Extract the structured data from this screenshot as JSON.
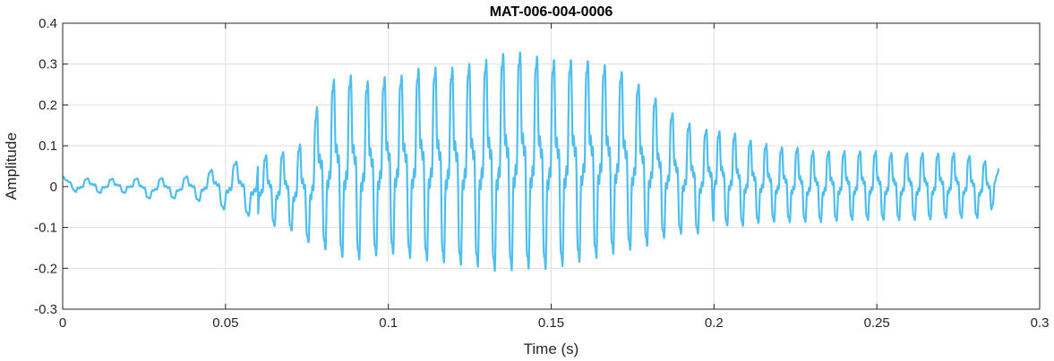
{
  "chart_data": {
    "type": "line",
    "title": "MAT-006-004-0006",
    "xlabel": "Time (s)",
    "ylabel": "Amplitude",
    "xlim": [
      0,
      0.3
    ],
    "ylim": [
      -0.3,
      0.4
    ],
    "grid": true,
    "x_ticks": [
      0,
      0.05,
      0.1,
      0.15,
      0.2,
      0.25,
      0.3
    ],
    "x_tick_labels": [
      "0",
      "0.05",
      "0.1",
      "0.15",
      "0.2",
      "0.25",
      "0.3"
    ],
    "y_ticks": [
      -0.3,
      -0.2,
      -0.1,
      0,
      0.1,
      0.2,
      0.3,
      0.4
    ],
    "y_tick_labels": [
      "-0.3",
      "-0.2",
      "-0.1",
      "0",
      "0.1",
      "0.2",
      "0.3",
      "0.4"
    ],
    "series": [
      {
        "color": "#4DBEEE",
        "x": [
          0,
          0.005,
          0.01,
          0.015,
          0.02,
          0.025,
          0.03,
          0.035,
          0.04,
          0.045,
          0.05,
          0.055,
          0.06,
          0.065,
          0.07,
          0.075,
          0.08,
          0.085,
          0.09,
          0.095,
          0.1,
          0.105,
          0.11,
          0.115,
          0.12,
          0.125,
          0.13,
          0.135,
          0.14,
          0.145,
          0.15,
          0.155,
          0.16,
          0.165,
          0.17,
          0.175,
          0.18,
          0.185,
          0.19,
          0.195,
          0.2,
          0.205,
          0.21,
          0.215,
          0.22,
          0.225,
          0.23,
          0.235,
          0.24,
          0.245,
          0.25,
          0.255,
          0.26,
          0.265,
          0.27,
          0.275,
          0.28,
          0.285,
          0.2875
        ],
        "upper": [
          0.025,
          0.02,
          0.022,
          0.02,
          0.022,
          0.02,
          0.022,
          0.02,
          0.03,
          0.04,
          0.06,
          0.065,
          0.075,
          0.085,
          0.09,
          0.12,
          0.25,
          0.28,
          0.28,
          0.26,
          0.28,
          0.28,
          0.3,
          0.3,
          0.3,
          0.31,
          0.32,
          0.335,
          0.34,
          0.33,
          0.32,
          0.32,
          0.32,
          0.31,
          0.3,
          0.27,
          0.24,
          0.2,
          0.17,
          0.15,
          0.14,
          0.14,
          0.12,
          0.11,
          0.1,
          0.1,
          0.09,
          0.09,
          0.09,
          0.09,
          0.09,
          0.085,
          0.085,
          0.085,
          0.085,
          0.085,
          0.075,
          0.06,
          0.045
        ],
        "lower": [
          0.01,
          -0.02,
          -0.015,
          -0.02,
          -0.015,
          -0.03,
          -0.03,
          -0.03,
          -0.035,
          -0.04,
          -0.06,
          -0.07,
          -0.08,
          -0.1,
          -0.11,
          -0.14,
          -0.16,
          -0.18,
          -0.19,
          -0.18,
          -0.17,
          -0.18,
          -0.19,
          -0.19,
          -0.2,
          -0.2,
          -0.21,
          -0.22,
          -0.21,
          -0.21,
          -0.21,
          -0.2,
          -0.19,
          -0.18,
          -0.17,
          -0.16,
          -0.15,
          -0.13,
          -0.12,
          -0.12,
          -0.1,
          -0.1,
          -0.1,
          -0.09,
          -0.09,
          -0.09,
          -0.09,
          -0.09,
          -0.085,
          -0.085,
          -0.085,
          -0.085,
          -0.085,
          -0.085,
          -0.08,
          -0.08,
          -0.08,
          -0.075,
          0.04
        ]
      }
    ]
  }
}
